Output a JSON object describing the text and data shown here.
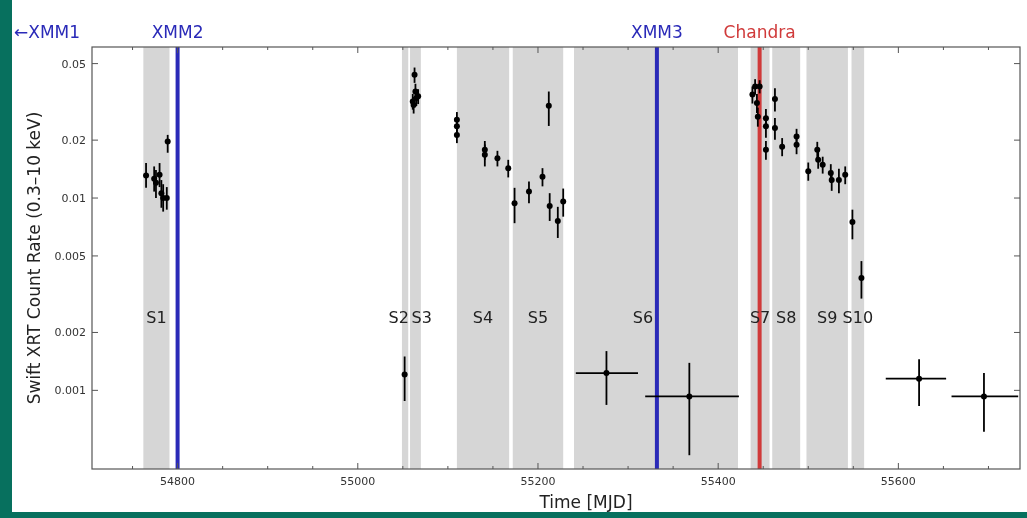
{
  "chart_data": {
    "type": "scatter",
    "xlabel": "Time [MJD]",
    "ylabel": "Swift XRT Count Rate (0.3–10 keV)",
    "annotations": [
      "←XMM1"
    ],
    "log": "y",
    "marker": "circle",
    "grid": false,
    "xlim": [
      54705,
      55735
    ],
    "ylim": [
      0.00039,
      0.061
    ],
    "xticks": [
      {
        "value": 54750,
        "label": null
      },
      54800,
      {
        "value": 54850,
        "label": null
      },
      {
        "value": 54900,
        "label": null
      },
      {
        "value": 54950,
        "label": null
      },
      55000,
      {
        "value": 55050,
        "label": null
      },
      {
        "value": 55100,
        "label": null
      },
      {
        "value": 55150,
        "label": null
      },
      55200,
      {
        "value": 55250,
        "label": null
      },
      {
        "value": 55300,
        "label": null
      },
      {
        "value": 55350,
        "label": null
      },
      55400,
      {
        "value": 55450,
        "label": null
      },
      {
        "value": 55500,
        "label": null
      },
      {
        "value": 55550,
        "label": null
      },
      55600,
      {
        "value": 55650,
        "label": null
      },
      {
        "value": 55700,
        "label": null
      }
    ],
    "yticks": [
      0.001,
      0.002,
      0.005,
      0.01,
      0.02,
      0.05
    ],
    "bands": [
      {
        "axis": "x",
        "from": 54762,
        "to": 54791,
        "label": "S1",
        "color": "#d6d6d6"
      },
      {
        "axis": "x",
        "from": 55049,
        "to": 55056,
        "label": "S2",
        "color": "#d6d6d6"
      },
      {
        "axis": "x",
        "from": 55058,
        "to": 55070,
        "label": "S3",
        "color": "#d6d6d6"
      },
      {
        "axis": "x",
        "from": 55110,
        "to": 55168,
        "label": "S4",
        "color": "#d6d6d6"
      },
      {
        "axis": "x",
        "from": 55172,
        "to": 55228,
        "label": "S5",
        "color": "#d6d6d6"
      },
      {
        "axis": "x",
        "from": 55240,
        "to": 55422,
        "label": "S6",
        "color": "#d6d6d6"
      },
      {
        "axis": "x",
        "from": 55436,
        "to": 55457,
        "label": "S7",
        "color": "#d6d6d6"
      },
      {
        "axis": "x",
        "from": 55460,
        "to": 55491,
        "label": "S8",
        "color": "#d6d6d6"
      },
      {
        "axis": "x",
        "from": 55498,
        "to": 55544,
        "label": "S9",
        "color": "#d6d6d6"
      },
      {
        "axis": "x",
        "from": 55548,
        "to": 55562,
        "label": "S10",
        "color": "#d6d6d6"
      }
    ],
    "ref_lines": [
      {
        "axis": "x",
        "value": 54800,
        "label": "XMM2",
        "color": "#2a2ab8"
      },
      {
        "axis": "x",
        "value": 55332,
        "label": "XMM3",
        "color": "#2a2ab8"
      },
      {
        "axis": "x",
        "value": 55446,
        "label": "Chandra",
        "color": "#d03a3a"
      }
    ],
    "series": [
      {
        "color": "#000000",
        "x": [
          54765,
          54774,
          54776,
          54780,
          54782,
          54784,
          54788,
          54789,
          55052,
          55061,
          55063,
          55064,
          55065,
          55062,
          55067,
          55110,
          55110,
          55110,
          55141,
          55141,
          55155,
          55167,
          55174,
          55190,
          55205,
          55212,
          55213,
          55222,
          55228,
          55276,
          55368,
          55438,
          55441,
          55443,
          55444,
          55446,
          55453,
          55453,
          55453,
          55463,
          55463,
          55471,
          55487,
          55487,
          55500,
          55510,
          55511,
          55516,
          55525,
          55526,
          55534,
          55541,
          55549,
          55559,
          55623,
          55695
        ],
        "values": [
          0.0131,
          0.0126,
          0.012,
          0.0132,
          0.0106,
          0.01,
          0.01,
          0.0197,
          0.00121,
          0.0318,
          0.0437,
          0.0358,
          0.0331,
          0.0305,
          0.0338,
          0.0255,
          0.0236,
          0.0213,
          0.0178,
          0.0168,
          0.0161,
          0.0143,
          0.0094,
          0.0108,
          0.0129,
          0.0302,
          0.0091,
          0.0076,
          0.0096,
          0.00123,
          0.00093,
          0.0345,
          0.038,
          0.0312,
          0.0265,
          0.038,
          0.026,
          0.0236,
          0.0178,
          0.0327,
          0.0231,
          0.0185,
          0.0209,
          0.0189,
          0.0138,
          0.0178,
          0.0158,
          0.0149,
          0.0135,
          0.0124,
          0.0124,
          0.0132,
          0.0075,
          0.00384,
          0.00115,
          0.00093
        ],
        "errors": [
          [
            0.0113,
            0.0152
          ],
          [
            0.0108,
            0.0146
          ],
          [
            0.01,
            0.014
          ],
          [
            0.0114,
            0.0152
          ],
          [
            0.0089,
            0.0124
          ],
          [
            0.0085,
            0.0118
          ],
          [
            0.0087,
            0.0114
          ],
          [
            0.0172,
            0.0213
          ],
          [
            0.00088,
            0.0015
          ],
          0.003,
          0.004,
          0.0035,
          0.003,
          0.003,
          0.003,
          0.0025,
          0.0022,
          0.002,
          0.002,
          0.0022,
          0.0015,
          0.0015,
          [
            0.0074,
            0.0113
          ],
          0.0014,
          0.0014,
          [
            0.0237,
            0.0358
          ],
          0.0015,
          0.0014,
          0.0016,
          [
            0.00084,
            0.0016
          ],
          [
            0.00046,
            0.00139
          ],
          0.0035,
          0.0035,
          0.0035,
          0.003,
          0.003,
          0.003,
          0.003,
          0.002,
          0.0045,
          0.003,
          0.002,
          0.002,
          0.002,
          0.0015,
          0.0018,
          0.0016,
          0.0015,
          0.0015,
          0.0015,
          0.0018,
          0.0014,
          [
            0.0061,
            0.0087
          ],
          [
            0.003,
            0.0047
          ],
          [
            0.00083,
            0.00145
          ],
          [
            0.00061,
            0.00123
          ]
        ],
        "xerrors": [
          null,
          null,
          null,
          null,
          null,
          null,
          null,
          null,
          null,
          null,
          null,
          null,
          null,
          null,
          null,
          null,
          null,
          null,
          null,
          null,
          null,
          null,
          null,
          null,
          null,
          null,
          null,
          null,
          null,
          [
            55242,
            55311
          ],
          [
            55319,
            55423
          ],
          null,
          null,
          null,
          null,
          null,
          null,
          null,
          null,
          null,
          null,
          null,
          null,
          null,
          null,
          null,
          null,
          null,
          null,
          null,
          null,
          null,
          null,
          null,
          [
            55586,
            55653
          ],
          [
            55659,
            55733
          ]
        ]
      }
    ]
  }
}
